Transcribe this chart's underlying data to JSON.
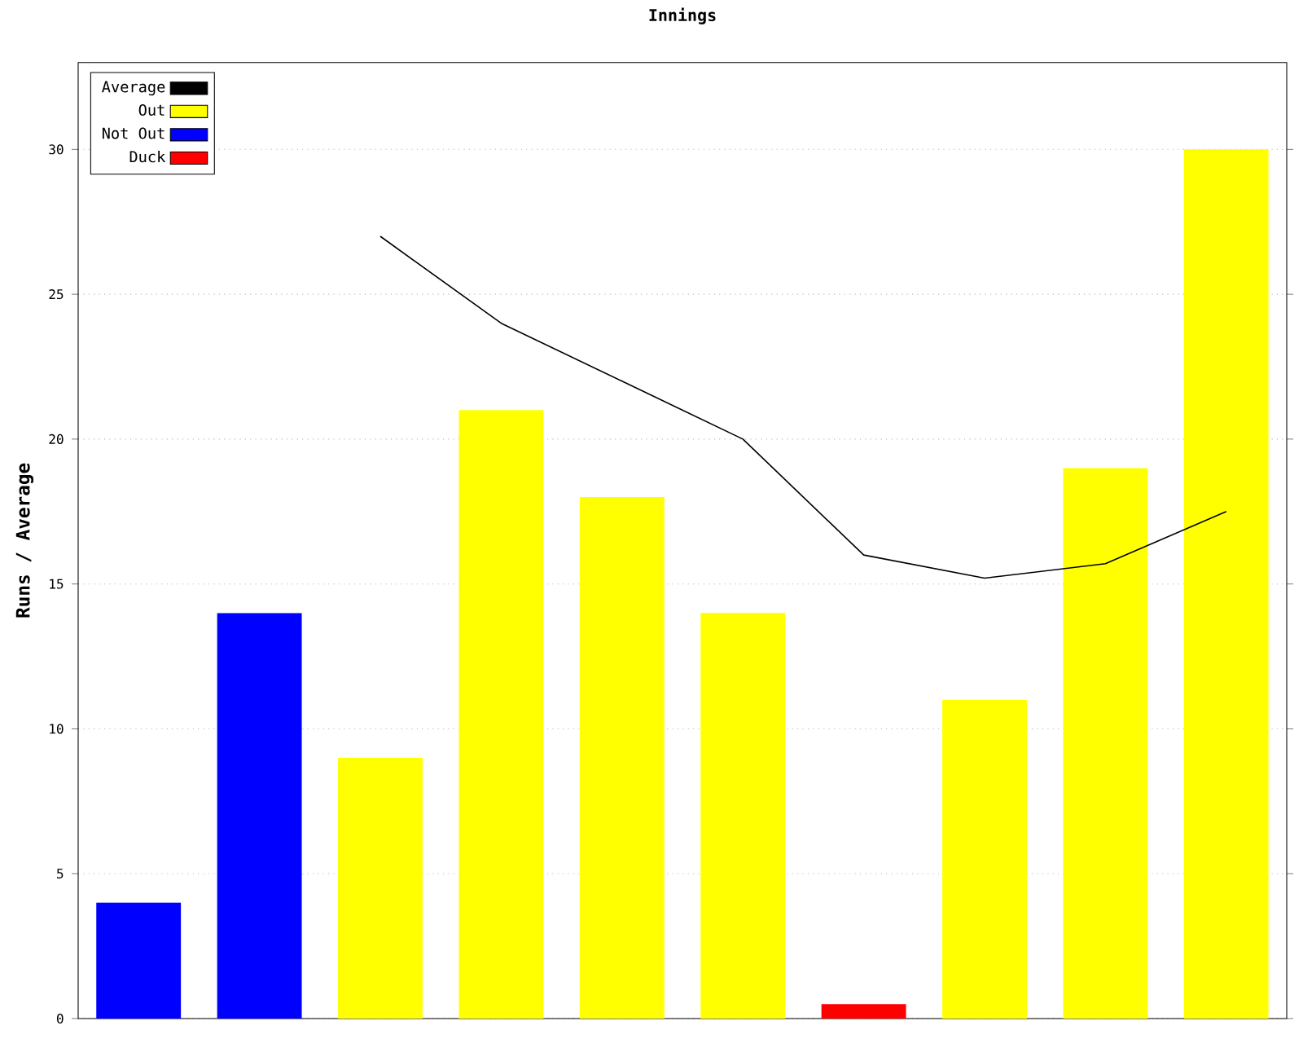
{
  "chart_data": {
    "type": "bar",
    "title": "Innings",
    "ylabel": "Runs / Average",
    "categories": [
      null,
      null,
      null,
      null,
      null,
      null,
      null,
      null,
      null,
      null
    ],
    "series": [
      {
        "name": "Average",
        "type": "line",
        "color": "#000000",
        "values": [
          null,
          null,
          27,
          24,
          22,
          20,
          16,
          15.2,
          15.7,
          17.5
        ]
      },
      {
        "name": "Out",
        "color": "#ffff00",
        "values": [
          null,
          null,
          9,
          21,
          18,
          14,
          null,
          11,
          19,
          30
        ]
      },
      {
        "name": "Not Out",
        "color": "#0000ff",
        "values": [
          4,
          14,
          null,
          null,
          null,
          null,
          null,
          null,
          null,
          null
        ]
      },
      {
        "name": "Duck",
        "color": "#ff0000",
        "values": [
          null,
          null,
          null,
          null,
          null,
          null,
          0.5,
          null,
          null,
          null
        ]
      }
    ],
    "ylim": [
      0,
      33
    ],
    "yticks": [
      0,
      5,
      10,
      15,
      20,
      25,
      30
    ],
    "grid": "y",
    "legend": "top left",
    "tick_labels": "y",
    "marker": "none"
  }
}
